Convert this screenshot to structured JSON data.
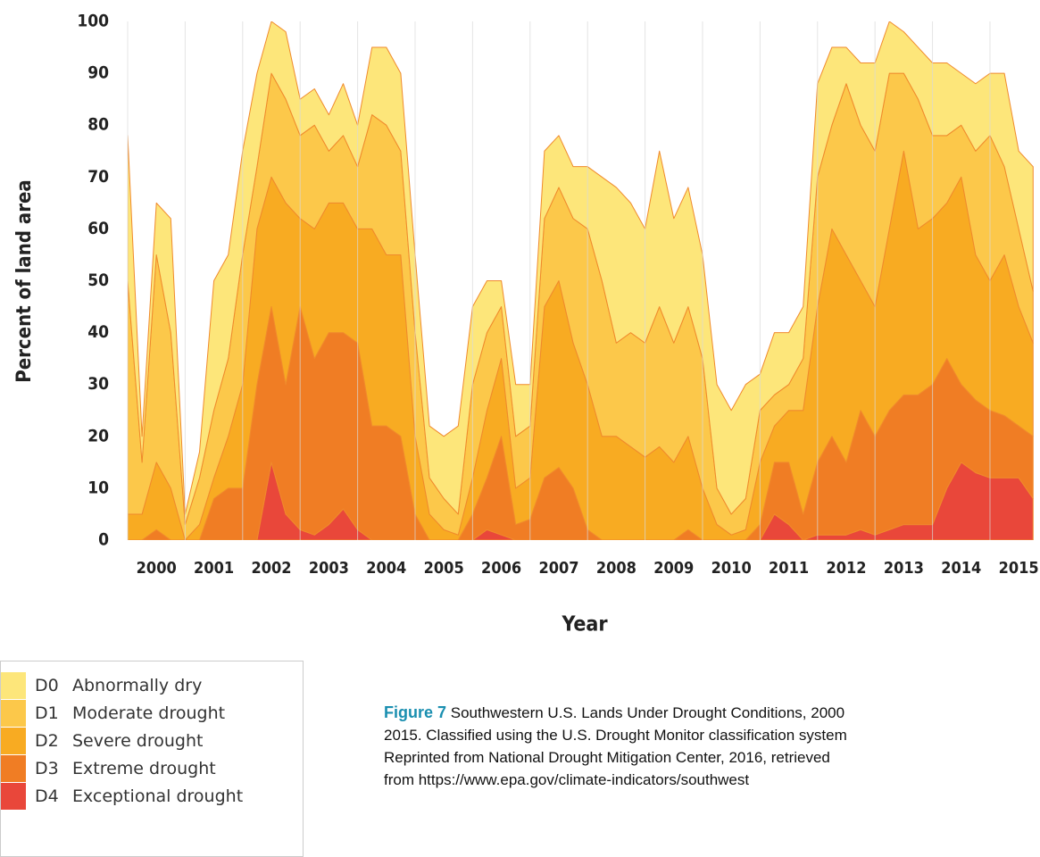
{
  "chart_data": {
    "type": "stacked-area",
    "y_label": "Percent of land area",
    "x_label": "Year",
    "x": [
      2000,
      2000.25,
      2000.5,
      2000.75,
      2001,
      2001.25,
      2001.5,
      2001.75,
      2002,
      2002.25,
      2002.5,
      2002.75,
      2003,
      2003.25,
      2003.5,
      2003.75,
      2004,
      2004.25,
      2004.5,
      2004.75,
      2005,
      2005.25,
      2005.5,
      2005.75,
      2006,
      2006.25,
      2006.5,
      2006.75,
      2007,
      2007.25,
      2007.5,
      2007.75,
      2008,
      2008.25,
      2008.5,
      2008.75,
      2009,
      2009.25,
      2009.5,
      2009.75,
      2010,
      2010.25,
      2010.5,
      2010.75,
      2011,
      2011.25,
      2011.5,
      2011.75,
      2012,
      2012.25,
      2012.5,
      2012.75,
      2013,
      2013.25,
      2013.5,
      2013.75,
      2014,
      2014.25,
      2014.5,
      2014.75,
      2015,
      2015.25,
      2015.5,
      2015.75
    ],
    "series": [
      {
        "code": "D0",
        "name": "Abnormally dry",
        "color": "#fde67a",
        "values": [
          28,
          5,
          10,
          22,
          2,
          5,
          25,
          20,
          20,
          18,
          10,
          13,
          7,
          7,
          7,
          10,
          8,
          13,
          15,
          15,
          15,
          10,
          12,
          17,
          15,
          10,
          5,
          10,
          8,
          13,
          10,
          10,
          12,
          20,
          30,
          25,
          22,
          30,
          24,
          23,
          20,
          20,
          20,
          22,
          7,
          12,
          10,
          10,
          18,
          15,
          7,
          12,
          17,
          10,
          8,
          10,
          14,
          14,
          10,
          13,
          12,
          18,
          15,
          24
        ]
      },
      {
        "code": "D1",
        "name": "Moderate drought",
        "color": "#fcc84a",
        "values": [
          45,
          10,
          40,
          30,
          3,
          9,
          13,
          15,
          25,
          12,
          20,
          20,
          16,
          20,
          10,
          13,
          12,
          22,
          25,
          20,
          20,
          7,
          6,
          4,
          18,
          15,
          10,
          10,
          10,
          17,
          18,
          24,
          30,
          30,
          18,
          22,
          22,
          27,
          23,
          25,
          25,
          7,
          4,
          6,
          10,
          6,
          5,
          10,
          25,
          20,
          33,
          30,
          30,
          30,
          15,
          25,
          16,
          13,
          10,
          20,
          28,
          17,
          15,
          10
        ]
      },
      {
        "code": "D2",
        "name": "Severe drought",
        "color": "#f8ab22",
        "values": [
          5,
          5,
          13,
          10,
          0,
          3,
          4,
          10,
          20,
          30,
          25,
          35,
          17,
          25,
          25,
          25,
          22,
          38,
          33,
          35,
          15,
          5,
          2,
          1,
          7,
          13,
          15,
          7,
          8,
          33,
          36,
          28,
          28,
          20,
          20,
          18,
          16,
          18,
          15,
          18,
          10,
          3,
          1,
          2,
          12,
          7,
          10,
          20,
          30,
          40,
          40,
          25,
          25,
          35,
          47,
          32,
          32,
          30,
          40,
          28,
          25,
          31,
          23,
          18
        ]
      },
      {
        "code": "D3",
        "name": "Extreme drought",
        "color": "#f07d24",
        "values": [
          0,
          0,
          2,
          0,
          0,
          0,
          8,
          10,
          10,
          30,
          30,
          25,
          43,
          34,
          37,
          34,
          36,
          22,
          22,
          20,
          5,
          0,
          0,
          0,
          5,
          10,
          19,
          3,
          4,
          12,
          14,
          10,
          2,
          0,
          0,
          0,
          0,
          0,
          0,
          2,
          0,
          0,
          0,
          0,
          3,
          10,
          12,
          5,
          14,
          19,
          14,
          23,
          19,
          23,
          25,
          25,
          27,
          25,
          15,
          14,
          13,
          12,
          10,
          12
        ]
      },
      {
        "code": "D4",
        "name": "Exceptional drought",
        "color": "#e9473a",
        "values": [
          0,
          0,
          0,
          0,
          0,
          0,
          0,
          0,
          0,
          0,
          15,
          5,
          2,
          1,
          3,
          6,
          2,
          0,
          0,
          0,
          0,
          0,
          0,
          0,
          0,
          2,
          1,
          0,
          0,
          0,
          0,
          0,
          0,
          0,
          0,
          0,
          0,
          0,
          0,
          0,
          0,
          0,
          0,
          0,
          0,
          5,
          3,
          0,
          1,
          1,
          1,
          2,
          1,
          2,
          3,
          3,
          3,
          10,
          15,
          13,
          12,
          12,
          12,
          8
        ]
      }
    ],
    "xlim": [
      2000,
      2015.87
    ],
    "xticks": [
      2000,
      2001,
      2002,
      2003,
      2004,
      2005,
      2006,
      2007,
      2008,
      2009,
      2010,
      2011,
      2012,
      2013,
      2014,
      2015
    ],
    "ylim": [
      0,
      100
    ],
    "yticks": [
      0,
      10,
      20,
      30,
      40,
      50,
      60,
      70,
      80,
      90,
      100
    ],
    "grid": true,
    "caption": {
      "label": "Figure 7",
      "lines": [
        " Southwestern U.S. Lands Under Drought Conditions, 2000",
        "2015. Classified using the U.S. Drought Monitor classification system",
        "Reprinted from National Drought Mitigation Center, 2016, retrieved",
        "from https://www.epa.gov/climate-indicators/southwest"
      ]
    }
  }
}
